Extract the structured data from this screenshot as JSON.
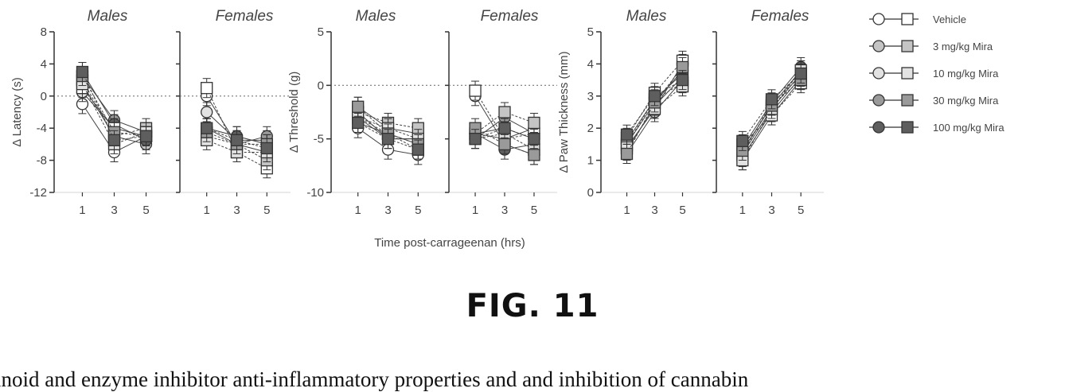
{
  "figure": {
    "caption": "FIG. 11",
    "page_text": "inoid and enzyme inhibitor anti-inflammatory properties and and inhibition of cannabin",
    "shared_xlabel": "Time post-carrageenan (hrs)",
    "legend": [
      {
        "label": "Vehicle",
        "fill": "#ffffff"
      },
      {
        "label": "3 mg/kg Mira",
        "fill": "#c4c4c4"
      },
      {
        "label": "10 mg/kg Mira",
        "fill": "#e2e2e2"
      },
      {
        "label": "30 mg/kg Mira",
        "fill": "#9a9a9a"
      },
      {
        "label": "100 mg/kg Mira",
        "fill": "#5e5e5e"
      }
    ]
  },
  "chart_data": [
    {
      "type": "line",
      "ylabel": "Δ Latency (s)",
      "ylim": [
        -12,
        8
      ],
      "yticks": [
        8,
        4,
        0,
        -4,
        -8,
        -12
      ],
      "panels": [
        {
          "title": "Males",
          "x": [
            1,
            3,
            5
          ],
          "series": [
            {
              "marker": "circle",
              "fill": "#ffffff",
              "values": [
                -1,
                -7,
                -5
              ]
            },
            {
              "marker": "circle",
              "fill": "#c4c4c4",
              "values": [
                1.5,
                -5,
                -6
              ]
            },
            {
              "marker": "circle",
              "fill": "#e2e2e2",
              "values": [
                0.5,
                -4,
                -5
              ]
            },
            {
              "marker": "circle",
              "fill": "#9a9a9a",
              "values": [
                2.5,
                -3,
                -4.5
              ]
            },
            {
              "marker": "circle",
              "fill": "#5e5e5e",
              "values": [
                3,
                -3.5,
                -5.5
              ]
            },
            {
              "marker": "square",
              "fill": "#ffffff",
              "values": [
                1,
                -4,
                -5
              ]
            },
            {
              "marker": "square",
              "fill": "#c4c4c4",
              "values": [
                2,
                -5,
                -4
              ]
            },
            {
              "marker": "square",
              "fill": "#e2e2e2",
              "values": [
                1.5,
                -6,
                -4.5
              ]
            },
            {
              "marker": "square",
              "fill": "#9a9a9a",
              "values": [
                2.5,
                -4.5,
                -5
              ]
            },
            {
              "marker": "square",
              "fill": "#5e5e5e",
              "values": [
                3,
                -5.5,
                -5
              ]
            }
          ]
        },
        {
          "title": "Females",
          "x": [
            1,
            3,
            5
          ],
          "series": [
            {
              "marker": "circle",
              "fill": "#ffffff",
              "values": [
                0,
                -6,
                -7
              ]
            },
            {
              "marker": "circle",
              "fill": "#c4c4c4",
              "values": [
                -4,
                -5,
                -6
              ]
            },
            {
              "marker": "circle",
              "fill": "#e2e2e2",
              "values": [
                -2,
                -5.5,
                -5.5
              ]
            },
            {
              "marker": "circle",
              "fill": "#9a9a9a",
              "values": [
                -4,
                -6,
                -5
              ]
            },
            {
              "marker": "circle",
              "fill": "#5e5e5e",
              "values": [
                -4,
                -5,
                -6
              ]
            },
            {
              "marker": "square",
              "fill": "#ffffff",
              "values": [
                1,
                -7,
                -9
              ]
            },
            {
              "marker": "square",
              "fill": "#c4c4c4",
              "values": [
                -5,
                -6,
                -8
              ]
            },
            {
              "marker": "square",
              "fill": "#e2e2e2",
              "values": [
                -5.5,
                -7,
                -7
              ]
            },
            {
              "marker": "square",
              "fill": "#9a9a9a",
              "values": [
                -4.5,
                -6,
                -6
              ]
            },
            {
              "marker": "square",
              "fill": "#5e5e5e",
              "values": [
                -4,
                -5.5,
                -6.5
              ]
            }
          ]
        }
      ]
    },
    {
      "type": "line",
      "ylabel": "Δ Threshold (g)",
      "ylim": [
        -10,
        5
      ],
      "yticks": [
        5,
        0,
        -5,
        -10
      ],
      "panels": [
        {
          "title": "Males",
          "x": [
            1,
            3,
            5
          ],
          "series": [
            {
              "marker": "circle",
              "fill": "#ffffff",
              "values": [
                -4,
                -6,
                -6.5
              ]
            },
            {
              "marker": "circle",
              "fill": "#c4c4c4",
              "values": [
                -3,
                -5,
                -5
              ]
            },
            {
              "marker": "circle",
              "fill": "#e2e2e2",
              "values": [
                -3.5,
                -4.5,
                -5.5
              ]
            },
            {
              "marker": "circle",
              "fill": "#9a9a9a",
              "values": [
                -2,
                -4,
                -4.5
              ]
            },
            {
              "marker": "circle",
              "fill": "#5e5e5e",
              "values": [
                -2.5,
                -5,
                -5
              ]
            },
            {
              "marker": "square",
              "fill": "#ffffff",
              "values": [
                -3,
                -4.5,
                -6
              ]
            },
            {
              "marker": "square",
              "fill": "#c4c4c4",
              "values": [
                -2.5,
                -3.5,
                -4
              ]
            },
            {
              "marker": "square",
              "fill": "#e2e2e2",
              "values": [
                -3,
                -4,
                -5
              ]
            },
            {
              "marker": "square",
              "fill": "#9a9a9a",
              "values": [
                -2,
                -4.5,
                -5.5
              ]
            },
            {
              "marker": "square",
              "fill": "#5e5e5e",
              "values": [
                -3.5,
                -5,
                -6
              ]
            }
          ]
        },
        {
          "title": "Females",
          "x": [
            1,
            3,
            5
          ],
          "series": [
            {
              "marker": "circle",
              "fill": "#ffffff",
              "values": [
                -1,
                -5.5,
                -6.5
              ]
            },
            {
              "marker": "circle",
              "fill": "#c4c4c4",
              "values": [
                -4.5,
                -4,
                -5
              ]
            },
            {
              "marker": "circle",
              "fill": "#e2e2e2",
              "values": [
                -4.5,
                -5,
                -4
              ]
            },
            {
              "marker": "circle",
              "fill": "#9a9a9a",
              "values": [
                -5,
                -3,
                -4.5
              ]
            },
            {
              "marker": "circle",
              "fill": "#5e5e5e",
              "values": [
                -4.5,
                -6,
                -5.5
              ]
            },
            {
              "marker": "square",
              "fill": "#ffffff",
              "values": [
                -0.5,
                -5,
                -4.5
              ]
            },
            {
              "marker": "square",
              "fill": "#c4c4c4",
              "values": [
                -4.5,
                -2.5,
                -3.5
              ]
            },
            {
              "marker": "square",
              "fill": "#e2e2e2",
              "values": [
                -5,
                -4.5,
                -6
              ]
            },
            {
              "marker": "square",
              "fill": "#9a9a9a",
              "values": [
                -4,
                -5.5,
                -6.5
              ]
            },
            {
              "marker": "square",
              "fill": "#5e5e5e",
              "values": [
                -5,
                -4,
                -5
              ]
            }
          ]
        }
      ]
    },
    {
      "type": "line",
      "ylabel": "Δ Paw Thickness (mm)",
      "ylim": [
        0,
        5
      ],
      "yticks": [
        5,
        4,
        3,
        2,
        1,
        0
      ],
      "panels": [
        {
          "title": "Males",
          "x": [
            1,
            3,
            5
          ],
          "series": [
            {
              "marker": "circle",
              "fill": "#ffffff",
              "values": [
                1.4,
                2.6,
                4.0
              ]
            },
            {
              "marker": "circle",
              "fill": "#c4c4c4",
              "values": [
                1.2,
                2.5,
                3.5
              ]
            },
            {
              "marker": "circle",
              "fill": "#e2e2e2",
              "values": [
                1.5,
                2.8,
                3.8
              ]
            },
            {
              "marker": "circle",
              "fill": "#9a9a9a",
              "values": [
                1.3,
                2.7,
                3.6
              ]
            },
            {
              "marker": "circle",
              "fill": "#5e5e5e",
              "values": [
                1.6,
                2.9,
                3.7
              ]
            },
            {
              "marker": "square",
              "fill": "#ffffff",
              "values": [
                1.7,
                3.1,
                4.1
              ]
            },
            {
              "marker": "square",
              "fill": "#c4c4c4",
              "values": [
                1.5,
                2.9,
                3.4
              ]
            },
            {
              "marker": "square",
              "fill": "#e2e2e2",
              "values": [
                1.4,
                2.6,
                3.3
              ]
            },
            {
              "marker": "square",
              "fill": "#9a9a9a",
              "values": [
                1.2,
                2.8,
                3.9
              ]
            },
            {
              "marker": "square",
              "fill": "#5e5e5e",
              "values": [
                1.8,
                3.0,
                3.5
              ]
            }
          ]
        },
        {
          "title": "Females",
          "x": [
            1,
            3,
            5
          ],
          "series": [
            {
              "marker": "circle",
              "fill": "#ffffff",
              "values": [
                1.0,
                2.4,
                3.5
              ]
            },
            {
              "marker": "circle",
              "fill": "#c4c4c4",
              "values": [
                1.2,
                2.6,
                3.7
              ]
            },
            {
              "marker": "circle",
              "fill": "#e2e2e2",
              "values": [
                1.3,
                2.7,
                3.8
              ]
            },
            {
              "marker": "circle",
              "fill": "#9a9a9a",
              "values": [
                1.1,
                2.5,
                3.6
              ]
            },
            {
              "marker": "circle",
              "fill": "#5e5e5e",
              "values": [
                1.4,
                2.8,
                3.9
              ]
            },
            {
              "marker": "square",
              "fill": "#ffffff",
              "values": [
                1.5,
                2.4,
                3.4
              ]
            },
            {
              "marker": "square",
              "fill": "#c4c4c4",
              "values": [
                1.2,
                2.8,
                3.6
              ]
            },
            {
              "marker": "square",
              "fill": "#e2e2e2",
              "values": [
                1.0,
                2.6,
                3.8
              ]
            },
            {
              "marker": "square",
              "fill": "#9a9a9a",
              "values": [
                1.3,
                2.7,
                3.5
              ]
            },
            {
              "marker": "square",
              "fill": "#5e5e5e",
              "values": [
                1.6,
                2.9,
                3.7
              ]
            }
          ]
        }
      ]
    }
  ]
}
